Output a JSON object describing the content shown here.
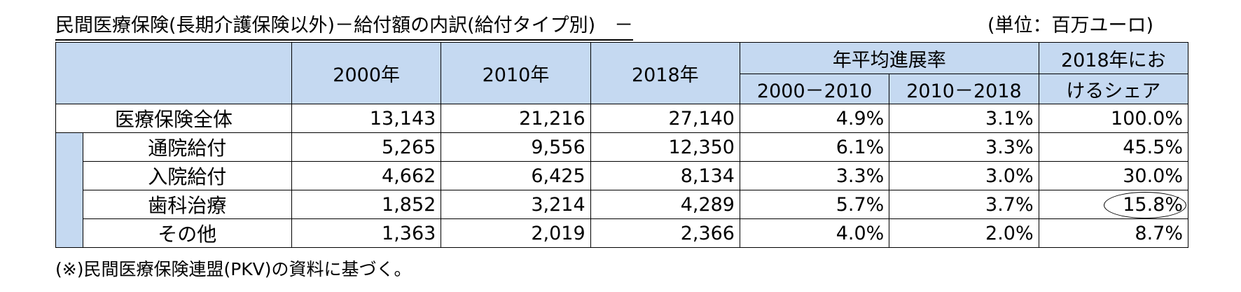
{
  "title": "民間医療保険(長期介護保険以外)－給付額の内訳(給付タイプ別)　－",
  "unit": "(単位：百万ユーロ)",
  "table": {
    "headers": {
      "y2000": "2000年",
      "y2010": "2010年",
      "y2018": "2018年",
      "growth_group": "年平均進展率",
      "growth_2000_2010": "2000－2010",
      "growth_2010_2018": "2010－2018",
      "share_line1": "2018年にお",
      "share_line2": "けるシェア"
    },
    "rows": [
      {
        "label": "医療保険全体",
        "y2000": "13,143",
        "y2010": "21,216",
        "y2018": "27,140",
        "g1": "4.9%",
        "g2": "3.1%",
        "share": "100.0%"
      },
      {
        "label": "通院給付",
        "y2000": "5,265",
        "y2010": "9,556",
        "y2018": "12,350",
        "g1": "6.1%",
        "g2": "3.3%",
        "share": "45.5%"
      },
      {
        "label": "入院給付",
        "y2000": "4,662",
        "y2010": "6,425",
        "y2018": "8,134",
        "g1": "3.3%",
        "g2": "3.0%",
        "share": "30.0%"
      },
      {
        "label": "歯科治療",
        "y2000": "1,852",
        "y2010": "3,214",
        "y2018": "4,289",
        "g1": "5.7%",
        "g2": "3.7%",
        "share": "15.8%"
      },
      {
        "label": "その他",
        "y2000": "1,363",
        "y2010": "2,019",
        "y2018": "2,366",
        "g1": "4.0%",
        "g2": "2.0%",
        "share": "8.7%"
      }
    ]
  },
  "note": "(※)民間医療保険連盟(PKV)の資料に基づく。"
}
